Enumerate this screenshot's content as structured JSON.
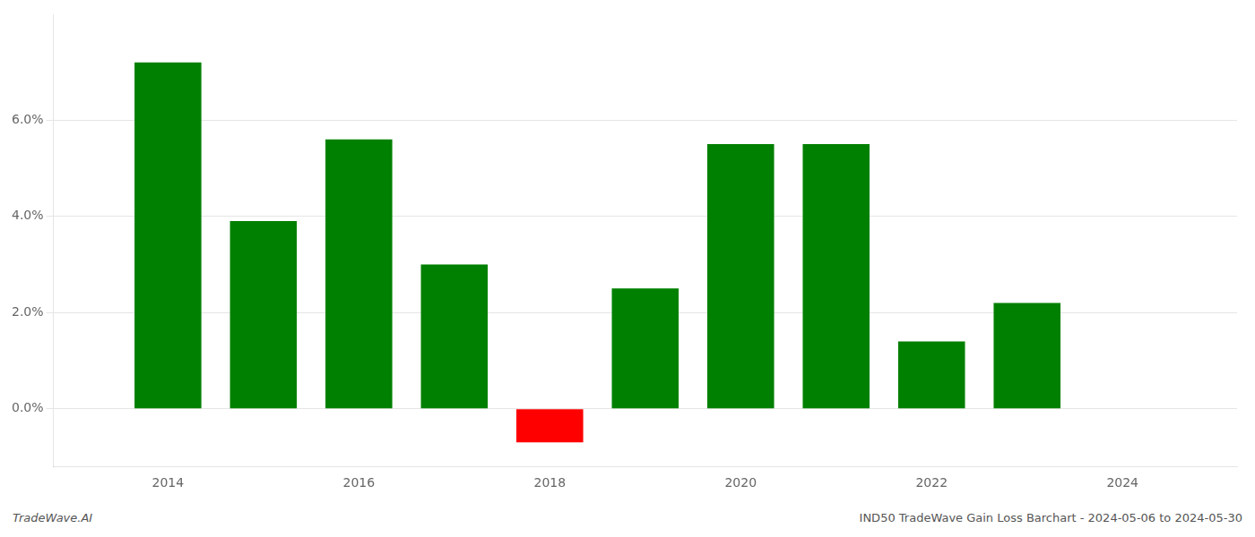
{
  "chart_data": {
    "type": "bar",
    "x": [
      2014,
      2015,
      2016,
      2017,
      2018,
      2019,
      2020,
      2021,
      2022,
      2023
    ],
    "values": [
      0.072,
      0.039,
      0.056,
      0.03,
      -0.007,
      0.025,
      0.055,
      0.055,
      0.014,
      0.022
    ],
    "colors": [
      "#008000",
      "#008000",
      "#008000",
      "#008000",
      "#ff0000",
      "#008000",
      "#008000",
      "#008000",
      "#008000",
      "#008000"
    ],
    "xlim": [
      2012.8,
      2025.2
    ],
    "xticks": [
      2014,
      2016,
      2018,
      2020,
      2022,
      2024
    ],
    "ylim": [
      -0.012,
      0.082
    ],
    "yticks": [
      {
        "value": 0.0,
        "label": "0.0%"
      },
      {
        "value": 0.02,
        "label": "2.0%"
      },
      {
        "value": 0.04,
        "label": "4.0%"
      },
      {
        "value": 0.06,
        "label": "6.0%"
      }
    ],
    "grid": "y",
    "annotations": [
      "TradeWave.AI",
      "IND50 TradeWave Gain Loss Barchart - 2024-05-06 to 2024-05-30"
    ]
  }
}
